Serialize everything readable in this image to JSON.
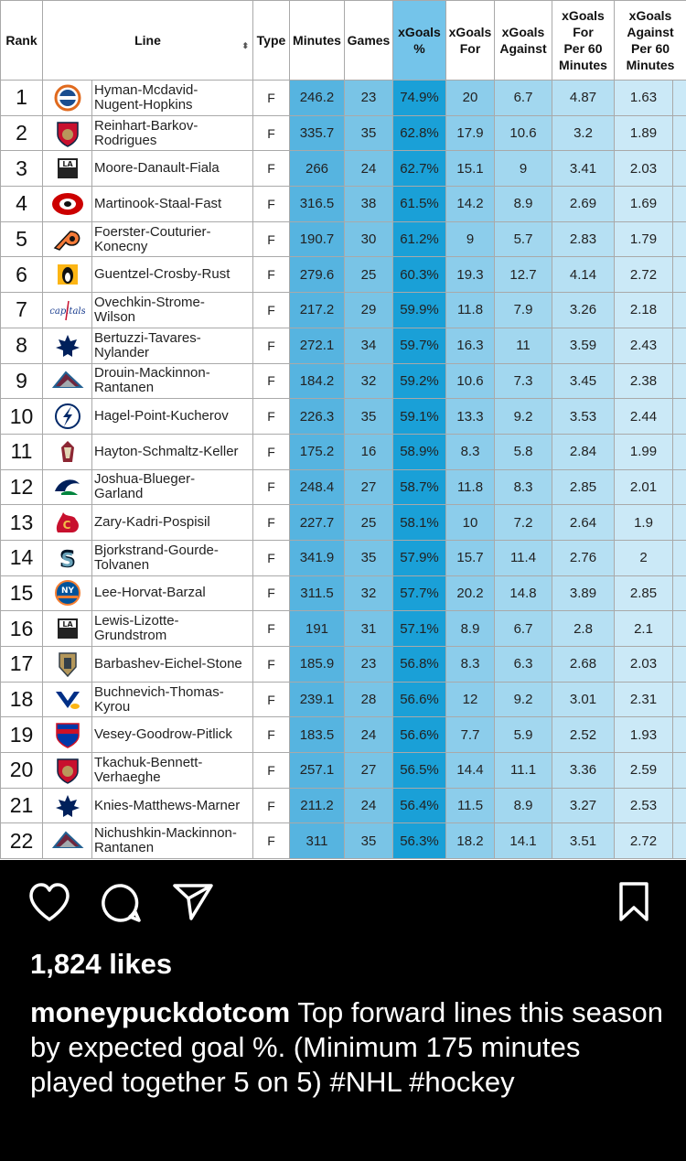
{
  "table": {
    "headers": {
      "rank": "Rank",
      "line": "Line",
      "type": "Type",
      "minutes": "Minutes",
      "games": "Games",
      "xg_pct": [
        "xGoals",
        "%"
      ],
      "xg_for": [
        "xGoals",
        "For"
      ],
      "xg_against": [
        "xGoals",
        "Against"
      ],
      "xgf60": [
        "xGoals",
        "For",
        "Per 60",
        "Minutes"
      ],
      "xga60": [
        "xGoals",
        "Against",
        "Per 60",
        "Minutes"
      ]
    },
    "rows": [
      {
        "rank": "1",
        "team_icon": "oilers-logo-icon",
        "line": [
          "Hyman-Mcdavid-",
          "Nugent-Hopkins"
        ],
        "type": "F",
        "minutes": "246.2",
        "games": "23",
        "xg_pct": "74.9%",
        "xg_for": "20",
        "xg_against": "6.7",
        "xgf60": "4.87",
        "xga60": "1.63"
      },
      {
        "rank": "2",
        "team_icon": "panthers-logo-icon",
        "line": [
          "Reinhart-Barkov-",
          "Rodrigues"
        ],
        "type": "F",
        "minutes": "335.7",
        "games": "35",
        "xg_pct": "62.8%",
        "xg_for": "17.9",
        "xg_against": "10.6",
        "xgf60": "3.2",
        "xga60": "1.89"
      },
      {
        "rank": "3",
        "team_icon": "kings-logo-icon",
        "line": [
          "Moore-Danault-Fiala"
        ],
        "type": "F",
        "minutes": "266",
        "games": "24",
        "xg_pct": "62.7%",
        "xg_for": "15.1",
        "xg_against": "9",
        "xgf60": "3.41",
        "xga60": "2.03"
      },
      {
        "rank": "4",
        "team_icon": "hurricanes-logo-icon",
        "line": [
          "Martinook-Staal-Fast"
        ],
        "type": "F",
        "minutes": "316.5",
        "games": "38",
        "xg_pct": "61.5%",
        "xg_for": "14.2",
        "xg_against": "8.9",
        "xgf60": "2.69",
        "xga60": "1.69"
      },
      {
        "rank": "5",
        "team_icon": "flyers-logo-icon",
        "line": [
          "Foerster-Couturier-",
          "Konecny"
        ],
        "type": "F",
        "minutes": "190.7",
        "games": "30",
        "xg_pct": "61.2%",
        "xg_for": "9",
        "xg_against": "5.7",
        "xgf60": "2.83",
        "xga60": "1.79"
      },
      {
        "rank": "6",
        "team_icon": "penguins-logo-icon",
        "line": [
          "Guentzel-Crosby-Rust"
        ],
        "type": "F",
        "minutes": "279.6",
        "games": "25",
        "xg_pct": "60.3%",
        "xg_for": "19.3",
        "xg_against": "12.7",
        "xgf60": "4.14",
        "xga60": "2.72"
      },
      {
        "rank": "7",
        "team_icon": "capitals-logo-icon",
        "line": [
          "Ovechkin-Strome-",
          "Wilson"
        ],
        "type": "F",
        "minutes": "217.2",
        "games": "29",
        "xg_pct": "59.9%",
        "xg_for": "11.8",
        "xg_against": "7.9",
        "xgf60": "3.26",
        "xga60": "2.18"
      },
      {
        "rank": "8",
        "team_icon": "maple-leafs-logo-icon",
        "line": [
          "Bertuzzi-Tavares-",
          "Nylander"
        ],
        "type": "F",
        "minutes": "272.1",
        "games": "34",
        "xg_pct": "59.7%",
        "xg_for": "16.3",
        "xg_against": "11",
        "xgf60": "3.59",
        "xga60": "2.43"
      },
      {
        "rank": "9",
        "team_icon": "avalanche-logo-icon",
        "line": [
          "Drouin-Mackinnon-",
          "Rantanen"
        ],
        "type": "F",
        "minutes": "184.2",
        "games": "32",
        "xg_pct": "59.2%",
        "xg_for": "10.6",
        "xg_against": "7.3",
        "xgf60": "3.45",
        "xga60": "2.38"
      },
      {
        "rank": "10",
        "team_icon": "lightning-logo-icon",
        "line": [
          "Hagel-Point-Kucherov"
        ],
        "type": "F",
        "minutes": "226.3",
        "games": "35",
        "xg_pct": "59.1%",
        "xg_for": "13.3",
        "xg_against": "9.2",
        "xgf60": "3.53",
        "xga60": "2.44"
      },
      {
        "rank": "11",
        "team_icon": "coyotes-logo-icon",
        "line": [
          "Hayton-Schmaltz-Keller"
        ],
        "type": "F",
        "minutes": "175.2",
        "games": "16",
        "xg_pct": "58.9%",
        "xg_for": "8.3",
        "xg_against": "5.8",
        "xgf60": "2.84",
        "xga60": "1.99"
      },
      {
        "rank": "12",
        "team_icon": "canucks-logo-icon",
        "line": [
          "Joshua-Blueger-",
          "Garland"
        ],
        "type": "F",
        "minutes": "248.4",
        "games": "27",
        "xg_pct": "58.7%",
        "xg_for": "11.8",
        "xg_against": "8.3",
        "xgf60": "2.85",
        "xga60": "2.01"
      },
      {
        "rank": "13",
        "team_icon": "flames-logo-icon",
        "line": [
          "Zary-Kadri-Pospisil"
        ],
        "type": "F",
        "minutes": "227.7",
        "games": "25",
        "xg_pct": "58.1%",
        "xg_for": "10",
        "xg_against": "7.2",
        "xgf60": "2.64",
        "xga60": "1.9"
      },
      {
        "rank": "14",
        "team_icon": "kraken-logo-icon",
        "line": [
          "Bjorkstrand-Gourde-",
          "Tolvanen"
        ],
        "type": "F",
        "minutes": "341.9",
        "games": "35",
        "xg_pct": "57.9%",
        "xg_for": "15.7",
        "xg_against": "11.4",
        "xgf60": "2.76",
        "xga60": "2"
      },
      {
        "rank": "15",
        "team_icon": "islanders-logo-icon",
        "line": [
          "Lee-Horvat-Barzal"
        ],
        "type": "F",
        "minutes": "311.5",
        "games": "32",
        "xg_pct": "57.7%",
        "xg_for": "20.2",
        "xg_against": "14.8",
        "xgf60": "3.89",
        "xga60": "2.85"
      },
      {
        "rank": "16",
        "team_icon": "kings-logo-icon",
        "line": [
          "Lewis-Lizotte-",
          "Grundstrom"
        ],
        "type": "F",
        "minutes": "191",
        "games": "31",
        "xg_pct": "57.1%",
        "xg_for": "8.9",
        "xg_against": "6.7",
        "xgf60": "2.8",
        "xga60": "2.1"
      },
      {
        "rank": "17",
        "team_icon": "golden-knights-logo-icon",
        "line": [
          "Barbashev-Eichel-Stone"
        ],
        "type": "F",
        "minutes": "185.9",
        "games": "23",
        "xg_pct": "56.8%",
        "xg_for": "8.3",
        "xg_against": "6.3",
        "xgf60": "2.68",
        "xga60": "2.03"
      },
      {
        "rank": "18",
        "team_icon": "blues-logo-icon",
        "line": [
          "Buchnevich-Thomas-",
          "Kyrou"
        ],
        "type": "F",
        "minutes": "239.1",
        "games": "28",
        "xg_pct": "56.6%",
        "xg_for": "12",
        "xg_against": "9.2",
        "xgf60": "3.01",
        "xga60": "2.31"
      },
      {
        "rank": "19",
        "team_icon": "rangers-logo-icon",
        "line": [
          "Vesey-Goodrow-Pitlick"
        ],
        "type": "F",
        "minutes": "183.5",
        "games": "24",
        "xg_pct": "56.6%",
        "xg_for": "7.7",
        "xg_against": "5.9",
        "xgf60": "2.52",
        "xga60": "1.93"
      },
      {
        "rank": "20",
        "team_icon": "panthers-logo-icon",
        "line": [
          "Tkachuk-Bennett-",
          "Verhaeghe"
        ],
        "type": "F",
        "minutes": "257.1",
        "games": "27",
        "xg_pct": "56.5%",
        "xg_for": "14.4",
        "xg_against": "11.1",
        "xgf60": "3.36",
        "xga60": "2.59"
      },
      {
        "rank": "21",
        "team_icon": "maple-leafs-logo-icon",
        "line": [
          "Knies-Matthews-Marner"
        ],
        "type": "F",
        "minutes": "211.2",
        "games": "24",
        "xg_pct": "56.4%",
        "xg_for": "11.5",
        "xg_against": "8.9",
        "xgf60": "3.27",
        "xga60": "2.53"
      },
      {
        "rank": "22",
        "team_icon": "avalanche-logo-icon",
        "line": [
          "Nichushkin-Mackinnon-",
          "Rantanen"
        ],
        "type": "F",
        "minutes": "311",
        "games": "35",
        "xg_pct": "56.3%",
        "xg_for": "18.2",
        "xg_against": "14.1",
        "xgf60": "3.51",
        "xga60": "2.72"
      }
    ],
    "column_colors": {
      "minutes": "#56b4e0",
      "games": "#79c4e6",
      "xg_pct": "#1aa0d7",
      "xg_for": "#8ccdeb",
      "xg_against": "#a2d7ef",
      "xgf60": "#b6e0f3",
      "xga60": "#cbe9f7"
    }
  },
  "post": {
    "icons": [
      "heart-icon",
      "comment-icon",
      "share-icon",
      "bookmark-icon"
    ],
    "likes": "1,824 likes",
    "username": "moneypuckdotcom",
    "caption": " Top forward lines this season by expected goal %. (Minimum 175 minutes played together 5 on 5) #NHL #hockey"
  }
}
